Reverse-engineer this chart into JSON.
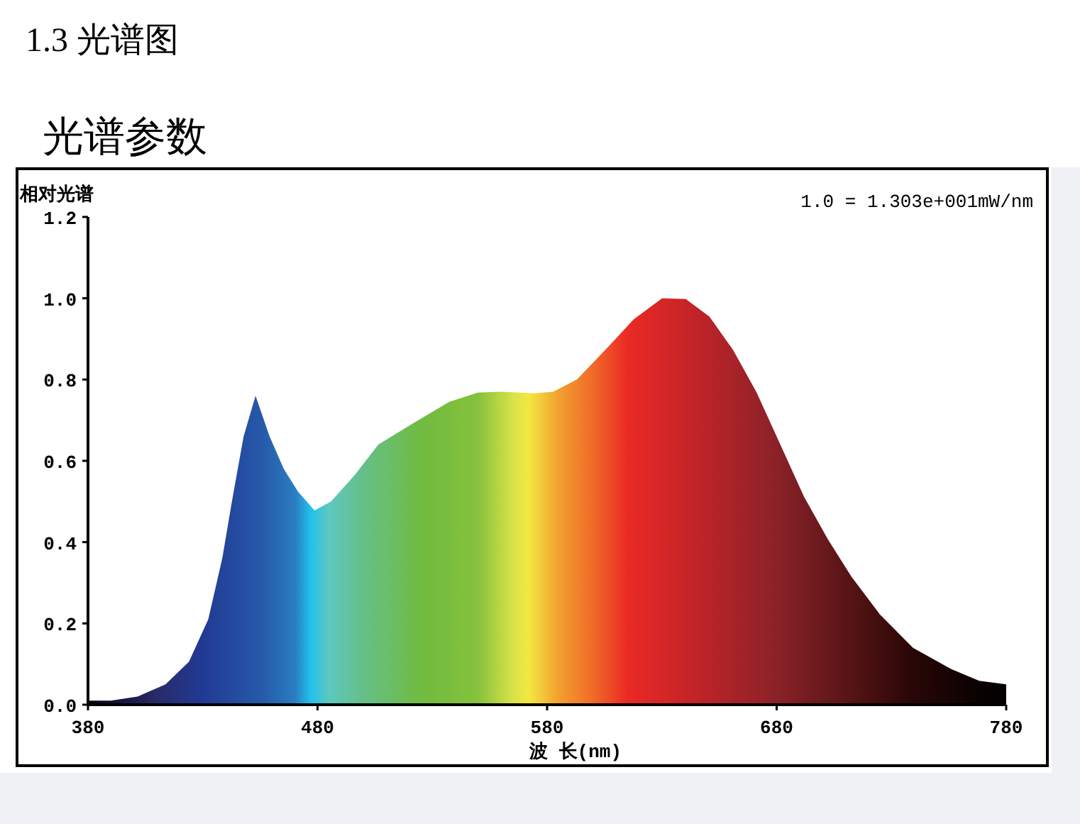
{
  "chart_data": {
    "type": "area",
    "title": "1.3 光谱图",
    "subtitle": "光谱参数",
    "ylabel": "相对光谱",
    "xlabel": "波 长(nm)",
    "annotations": [
      "1.0 = 1.303e+001mW/nm"
    ],
    "xlim": [
      380,
      780
    ],
    "ylim": [
      0,
      1.2
    ],
    "xticks": [
      380,
      480,
      580,
      680,
      780
    ],
    "yticks": [
      {
        "value": 0,
        "label": "0.0"
      },
      {
        "value": 0.2,
        "label": "0.2"
      },
      {
        "value": 0.4,
        "label": "0.4"
      },
      {
        "value": 0.6,
        "label": "0.6"
      },
      {
        "value": 0.8,
        "label": "0.8"
      },
      {
        "value": 1.0,
        "label": "1.0"
      },
      {
        "value": 1.2,
        "label": "1.2"
      }
    ],
    "grid": false,
    "series": [
      {
        "x": [
          380,
          390,
          401.6,
          413.8,
          424,
          432.4,
          438.5,
          442.7,
          447.8,
          453,
          459.1,
          465.3,
          471.5,
          478.7,
          485.9,
          496.2,
          506.5,
          520.9,
          537.4,
          549.8,
          560,
          574.5,
          582.7,
          593,
          607.4,
          617.7,
          630.1,
          640.4,
          650.7,
          661,
          671.3,
          681.6,
          691.9,
          702.2,
          712.6,
          725,
          739.4,
          755.9,
          768.2,
          780
        ],
        "values": [
          0.01,
          0.01,
          0.02,
          0.05,
          0.106,
          0.21,
          0.36,
          0.5,
          0.66,
          0.76,
          0.66,
          0.58,
          0.524,
          0.478,
          0.5,
          0.565,
          0.64,
          0.69,
          0.745,
          0.768,
          0.77,
          0.766,
          0.77,
          0.8,
          0.885,
          0.948,
          1.0,
          0.998,
          0.955,
          0.873,
          0.768,
          0.64,
          0.512,
          0.408,
          0.315,
          0.222,
          0.14,
          0.088,
          0.059,
          0.05
        ]
      }
    ]
  }
}
